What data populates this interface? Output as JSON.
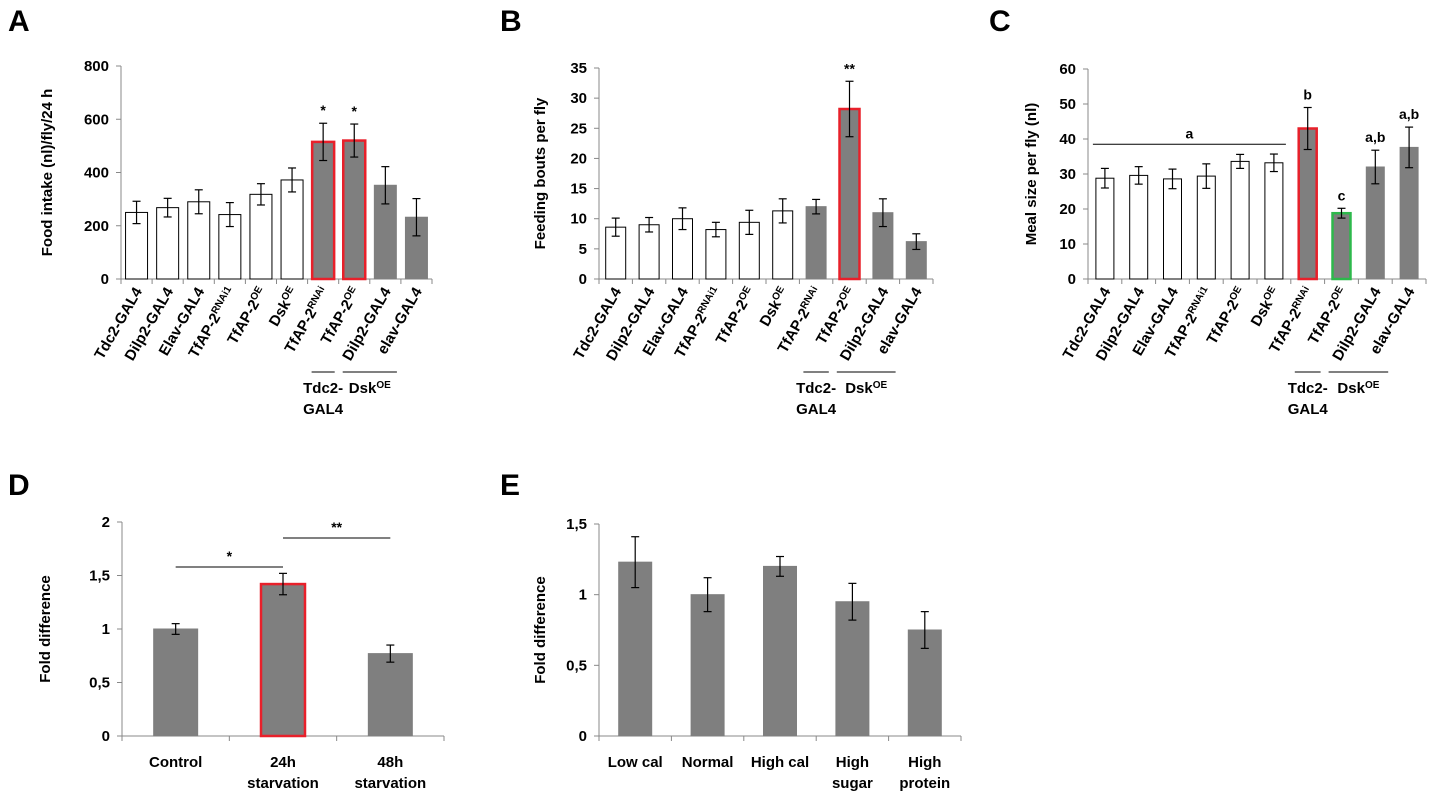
{
  "panels": [
    {
      "letter": "A",
      "chart_data": {
        "type": "bar",
        "ylabel": "Food intake (nl)/fly/24 h",
        "ylim": [
          0,
          800
        ],
        "yticks": [
          "0",
          "200",
          "400",
          "600",
          "800"
        ],
        "categories": [
          [
            "Tdc2-GAL4",
            ""
          ],
          [
            "Dilp2-GAL4",
            ""
          ],
          [
            "Elav-GAL4",
            ""
          ],
          [
            "TfAP-2",
            "RNAi1"
          ],
          [
            "TfAP-2",
            "OE"
          ],
          [
            "Dsk",
            "OE"
          ],
          [
            "TfAP-2",
            "RNAi"
          ],
          [
            "TfAP-2",
            "OE"
          ],
          [
            "Dilp2-GAL4",
            ""
          ],
          [
            "elav-GAL4",
            ""
          ]
        ],
        "values": [
          250,
          268,
          290,
          242,
          318,
          372,
          515,
          520,
          352,
          232
        ],
        "errors": [
          42,
          35,
          45,
          45,
          40,
          45,
          70,
          62,
          70,
          70
        ],
        "fills": [
          "#ffffff",
          "#ffffff",
          "#ffffff",
          "#ffffff",
          "#ffffff",
          "#ffffff",
          "#7f7f7f",
          "#7f7f7f",
          "#7f7f7f",
          "#7f7f7f"
        ],
        "outlines": [
          "#000000",
          "#000000",
          "#000000",
          "#000000",
          "#000000",
          "#000000",
          "#e8202a",
          "#e8202a",
          "#7f7f7f",
          "#7f7f7f"
        ],
        "annotations": [
          "",
          "",
          "",
          "",
          "",
          "",
          "*",
          "*",
          "",
          ""
        ],
        "groups": [
          {
            "from": 6,
            "to": 6,
            "label": [
              "Tdc2-",
              "GAL4"
            ],
            "sup": ""
          },
          {
            "from": 7,
            "to": 8,
            "label": [
              "Dsk"
            ],
            "sup": "OE"
          }
        ]
      }
    },
    {
      "letter": "B",
      "chart_data": {
        "type": "bar",
        "ylabel": "Feeding bouts per fly",
        "ylim": [
          0,
          35
        ],
        "yticks": [
          "0",
          "5",
          "10",
          "15",
          "20",
          "25",
          "30",
          "35"
        ],
        "categories": [
          [
            "Tdc2-GAL4",
            ""
          ],
          [
            "Dilp2-GAL4",
            ""
          ],
          [
            "Elav-GAL4",
            ""
          ],
          [
            "TfAP-2",
            "RNAi1"
          ],
          [
            "TfAP-2",
            "OE"
          ],
          [
            "Dsk",
            "OE"
          ],
          [
            "TfAP-2",
            "RNAi"
          ],
          [
            "TfAP-2",
            "OE"
          ],
          [
            "Dilp2-GAL4",
            ""
          ],
          [
            "elav-GAL4",
            ""
          ]
        ],
        "values": [
          8.6,
          9.0,
          10.0,
          8.2,
          9.4,
          11.3,
          12.0,
          28.2,
          11.0,
          6.2
        ],
        "errors": [
          1.5,
          1.2,
          1.8,
          1.2,
          2.0,
          2.0,
          1.2,
          4.6,
          2.3,
          1.3
        ],
        "fills": [
          "#ffffff",
          "#ffffff",
          "#ffffff",
          "#ffffff",
          "#ffffff",
          "#ffffff",
          "#7f7f7f",
          "#7f7f7f",
          "#7f7f7f",
          "#7f7f7f"
        ],
        "outlines": [
          "#000000",
          "#000000",
          "#000000",
          "#000000",
          "#000000",
          "#000000",
          "#7f7f7f",
          "#e8202a",
          "#7f7f7f",
          "#7f7f7f"
        ],
        "annotations": [
          "",
          "",
          "",
          "",
          "",
          "",
          "",
          "**",
          "",
          ""
        ],
        "groups": [
          {
            "from": 6,
            "to": 6,
            "label": [
              "Tdc2-",
              "GAL4"
            ],
            "sup": ""
          },
          {
            "from": 7,
            "to": 8,
            "label": [
              "Dsk"
            ],
            "sup": "OE"
          }
        ]
      }
    },
    {
      "letter": "C",
      "chart_data": {
        "type": "bar",
        "ylabel": "Meal size per fly (nl)",
        "ylim": [
          0,
          60
        ],
        "yticks": [
          "0",
          "10",
          "20",
          "30",
          "40",
          "50",
          "60"
        ],
        "categories": [
          [
            "Tdc2-GAL4",
            ""
          ],
          [
            "Dilp2-GAL4",
            ""
          ],
          [
            "Elav-GAL4",
            ""
          ],
          [
            "TfAP-2",
            "RNAi1"
          ],
          [
            "TfAP-2",
            "OE"
          ],
          [
            "Dsk",
            "OE"
          ],
          [
            "TfAP-2",
            "RNAi"
          ],
          [
            "TfAP-2",
            "OE"
          ],
          [
            "Dilp2-GAL4",
            ""
          ],
          [
            "elav-GAL4",
            ""
          ]
        ],
        "values": [
          28.8,
          29.6,
          28.6,
          29.4,
          33.6,
          33.2,
          43.0,
          18.8,
          32.0,
          37.6
        ],
        "errors": [
          2.8,
          2.5,
          2.8,
          3.5,
          2.0,
          2.5,
          6.0,
          1.4,
          4.8,
          5.8
        ],
        "fills": [
          "#ffffff",
          "#ffffff",
          "#ffffff",
          "#ffffff",
          "#ffffff",
          "#ffffff",
          "#7f7f7f",
          "#7f7f7f",
          "#7f7f7f",
          "#7f7f7f"
        ],
        "outlines": [
          "#000000",
          "#000000",
          "#000000",
          "#000000",
          "#000000",
          "#000000",
          "#e8202a",
          "#2db84b",
          "#7f7f7f",
          "#7f7f7f"
        ],
        "annotations": [
          "",
          "",
          "",
          "",
          "",
          "",
          "b",
          "c",
          "a,b",
          "a,b"
        ],
        "bracket": {
          "from": 0,
          "to": 5,
          "label": "a",
          "at": 38.5
        },
        "groups": [
          {
            "from": 6,
            "to": 6,
            "label": [
              "Tdc2-",
              "GAL4"
            ],
            "sup": ""
          },
          {
            "from": 7,
            "to": 8,
            "label": [
              "Dsk"
            ],
            "sup": "OE"
          }
        ]
      }
    },
    {
      "letter": "D",
      "chart_data": {
        "type": "bar",
        "ylabel": "Fold difference",
        "ylim": [
          0,
          2
        ],
        "yticks": [
          "0",
          "0,5",
          "1",
          "1,5",
          "2"
        ],
        "categories": [
          [
            "Control"
          ],
          [
            "24h",
            "starvation"
          ],
          [
            "48h",
            "starvation"
          ]
        ],
        "values": [
          1.0,
          1.42,
          0.77
        ],
        "errors": [
          0.05,
          0.1,
          0.08
        ],
        "fills": [
          "#7f7f7f",
          "#7f7f7f",
          "#7f7f7f"
        ],
        "outlines": [
          "#7f7f7f",
          "#e8202a",
          "#7f7f7f"
        ],
        "comparisons": [
          {
            "from": 0,
            "to": 1,
            "y": 1.58,
            "label": "*"
          },
          {
            "from": 1,
            "to": 2,
            "y": 1.85,
            "label": "**"
          }
        ]
      }
    },
    {
      "letter": "E",
      "chart_data": {
        "type": "bar",
        "ylabel": "Fold difference",
        "ylim": [
          0,
          1.5
        ],
        "yticks": [
          "0",
          "0,5",
          "1",
          "1,5"
        ],
        "categories": [
          [
            "Low cal"
          ],
          [
            "Normal"
          ],
          [
            "High cal"
          ],
          [
            "High",
            "sugar"
          ],
          [
            "High",
            "protein"
          ]
        ],
        "values": [
          1.23,
          1.0,
          1.2,
          0.95,
          0.75
        ],
        "errors": [
          0.18,
          0.12,
          0.07,
          0.13,
          0.13
        ],
        "fills": [
          "#7f7f7f",
          "#7f7f7f",
          "#7f7f7f",
          "#7f7f7f",
          "#7f7f7f"
        ],
        "outlines": [
          "#7f7f7f",
          "#7f7f7f",
          "#7f7f7f",
          "#7f7f7f",
          "#7f7f7f"
        ]
      }
    }
  ]
}
